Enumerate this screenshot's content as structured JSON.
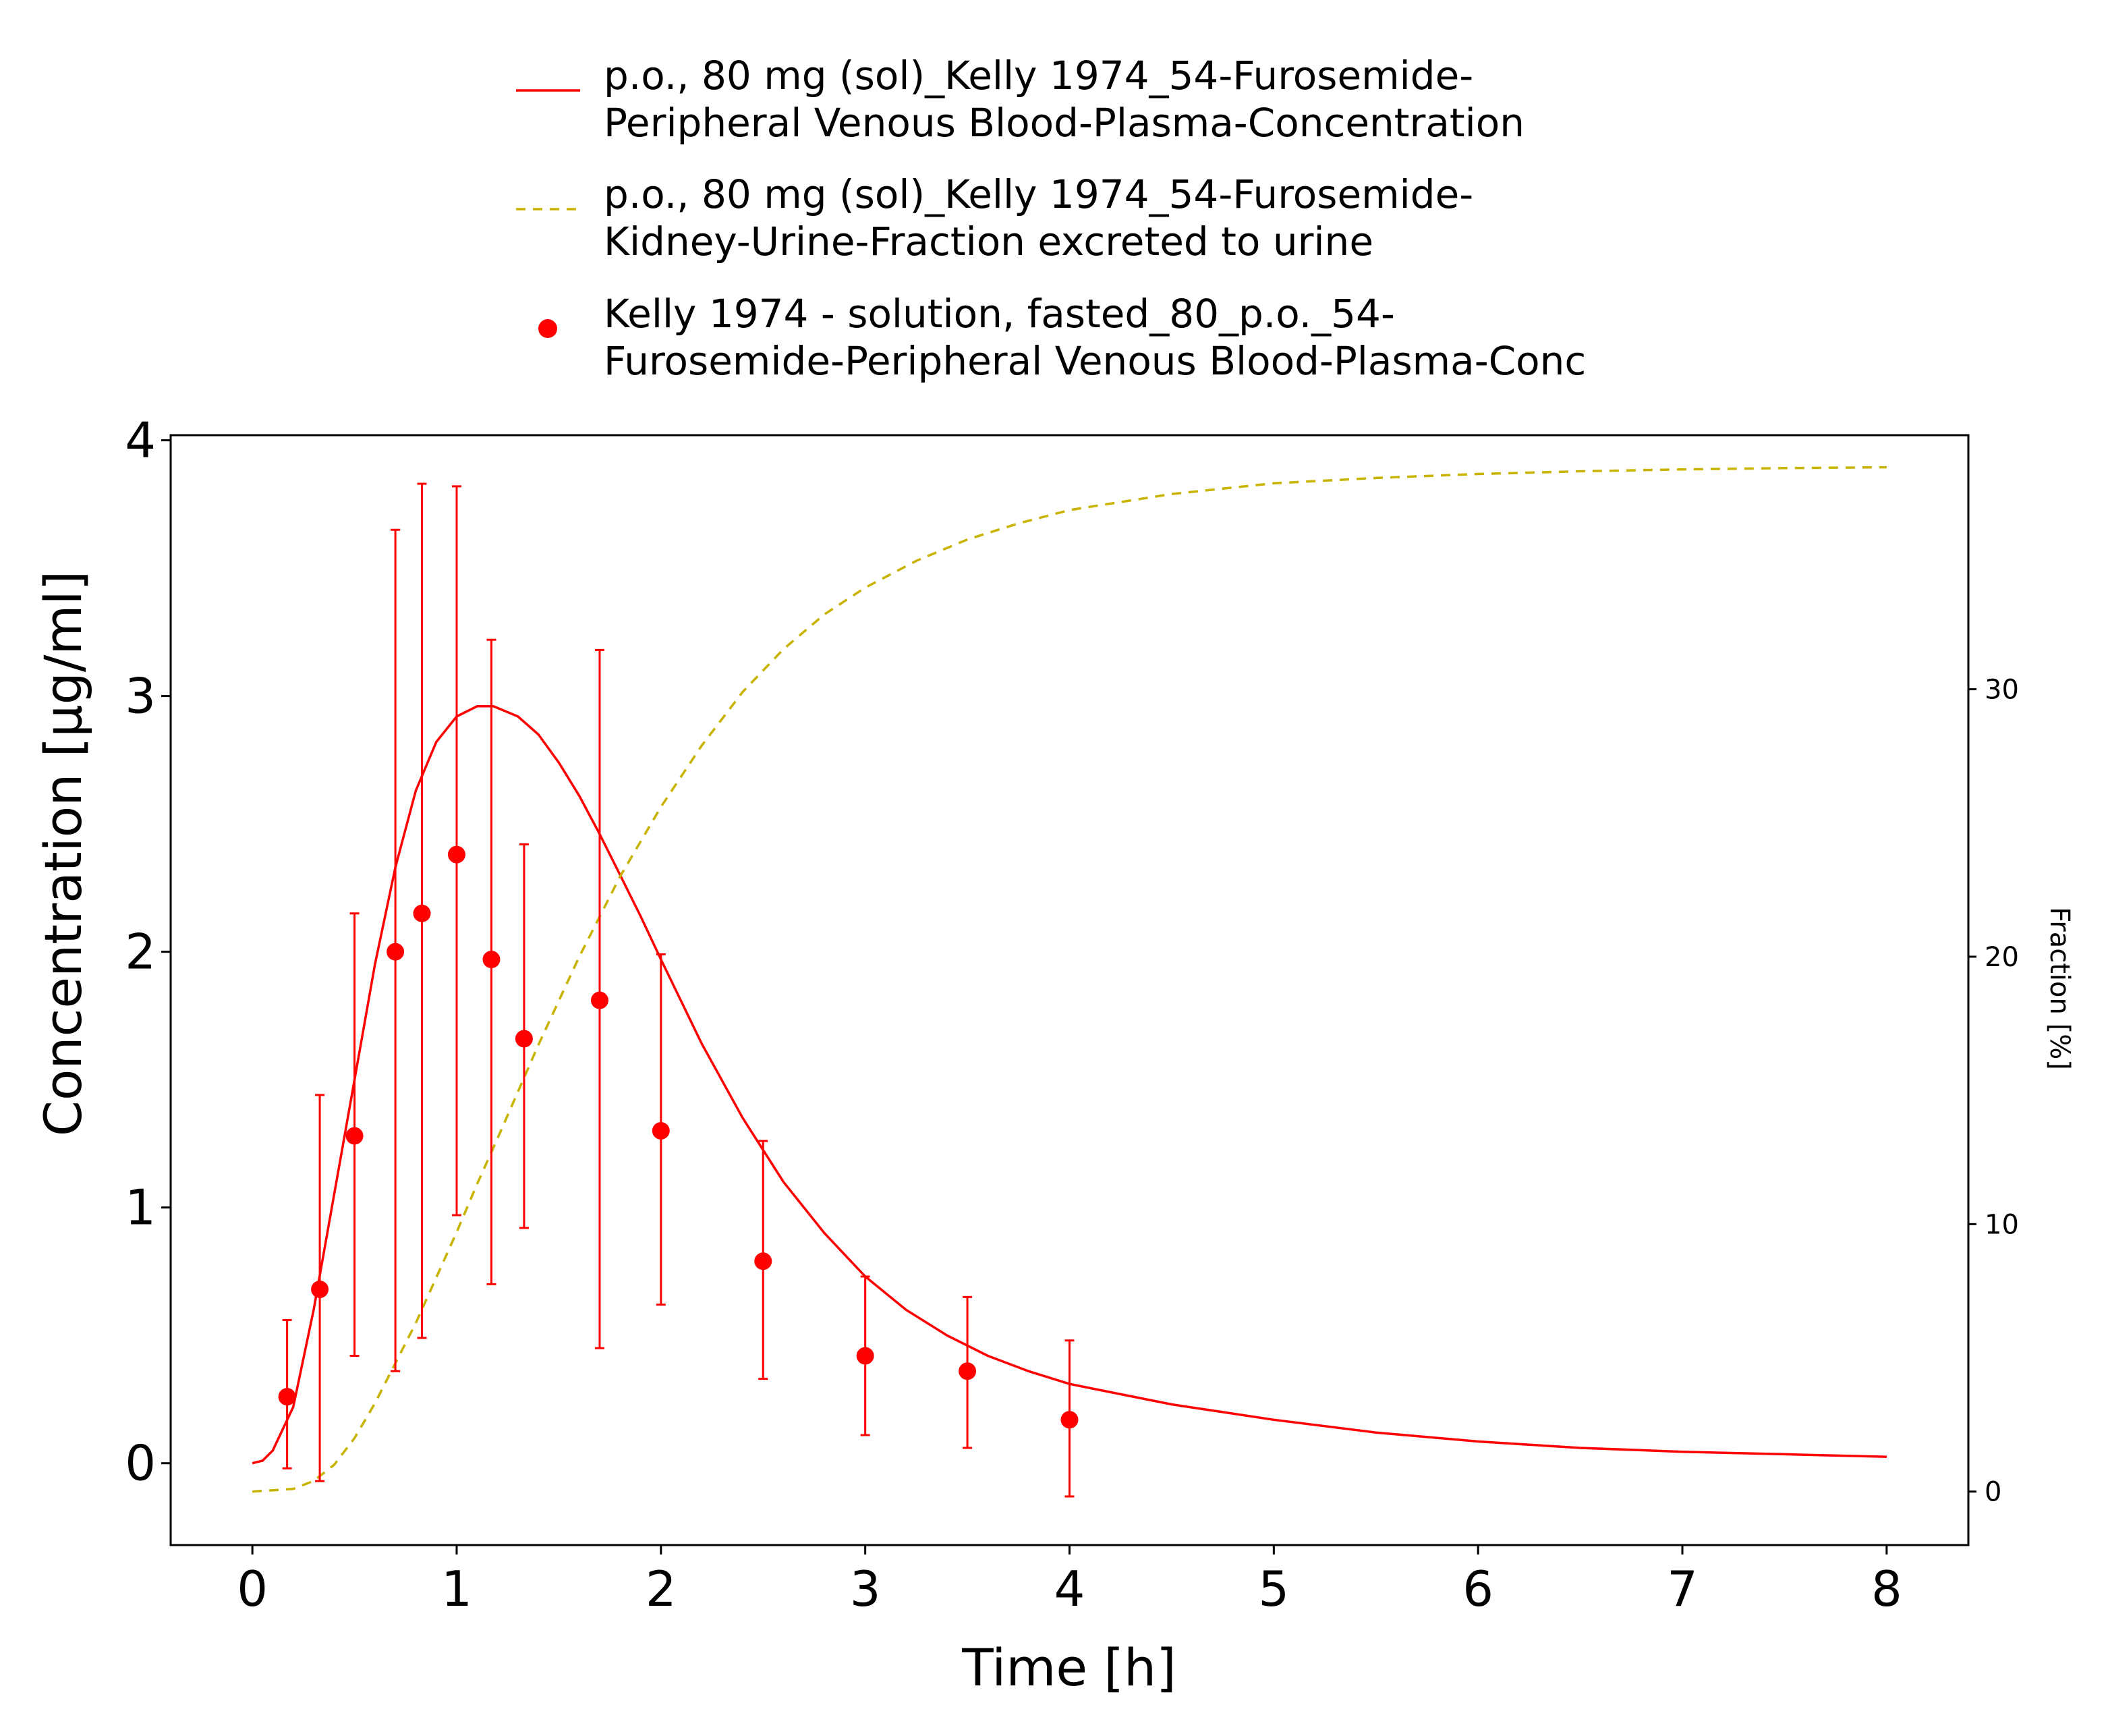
{
  "colors": {
    "plasma": "#ff0000",
    "urine": "#c8b400",
    "axis": "#000000"
  },
  "legend": [
    {
      "lines": [
        "p.o., 80 mg (sol)_Kelly 1974_54-Furosemide-",
        "Peripheral Venous Blood-Plasma-Concentration"
      ],
      "style": "solid-line"
    },
    {
      "lines": [
        "p.o., 80 mg (sol)_Kelly 1974_54-Furosemide-",
        "Kidney-Urine-Fraction excreted to urine"
      ],
      "style": "dashed-line"
    },
    {
      "lines": [
        "Kelly 1974 - solution, fasted_80_p.o._54-",
        "Furosemide-Peripheral Venous Blood-Plasma-Conc"
      ],
      "style": "marker"
    }
  ],
  "chart_data": {
    "type": "line",
    "xlabel": "Time [h]",
    "ylabel": "Concentration [µg/ml]",
    "y2label": "Fraction [%]",
    "xlim": [
      -0.4,
      8.4
    ],
    "ylim": [
      -0.32,
      4.02
    ],
    "y2lim": [
      -2,
      39.5
    ],
    "xticks": [
      0,
      1,
      2,
      3,
      4,
      5,
      6,
      7,
      8
    ],
    "yticks": [
      0,
      1,
      2,
      3,
      4
    ],
    "y2ticks": [
      0,
      10,
      20,
      30
    ],
    "grid": false,
    "legend_position": "top",
    "series": [
      {
        "name": "p.o., 80 mg (sol)_Kelly 1974_54-Furosemide-Peripheral Venous Blood-Plasma-Concentration",
        "axis": "left",
        "style": "solid",
        "x": [
          0,
          0.05,
          0.1,
          0.2,
          0.3,
          0.4,
          0.5,
          0.6,
          0.7,
          0.8,
          0.9,
          1.0,
          1.1,
          1.18,
          1.3,
          1.4,
          1.5,
          1.6,
          1.7,
          1.8,
          1.9,
          2.0,
          2.2,
          2.4,
          2.6,
          2.8,
          3.0,
          3.2,
          3.4,
          3.6,
          3.8,
          4.0,
          4.25,
          4.5,
          5.0,
          5.5,
          6.0,
          6.5,
          7.0,
          7.5,
          8.0
        ],
        "y": [
          0.0,
          0.01,
          0.05,
          0.22,
          0.6,
          1.05,
          1.5,
          1.95,
          2.33,
          2.63,
          2.82,
          2.92,
          2.96,
          2.96,
          2.92,
          2.85,
          2.74,
          2.61,
          2.46,
          2.3,
          2.14,
          1.97,
          1.64,
          1.35,
          1.1,
          0.9,
          0.73,
          0.6,
          0.5,
          0.42,
          0.36,
          0.31,
          0.27,
          0.23,
          0.17,
          0.12,
          0.085,
          0.06,
          0.045,
          0.035,
          0.025
        ]
      },
      {
        "name": "p.o., 80 mg (sol)_Kelly 1974_54-Furosemide-Kidney-Urine-Fraction excreted to urine",
        "axis": "right",
        "style": "dashed",
        "x": [
          0,
          0.2,
          0.3,
          0.4,
          0.5,
          0.6,
          0.7,
          0.8,
          0.9,
          1.0,
          1.1,
          1.2,
          1.4,
          1.6,
          1.8,
          2.0,
          2.2,
          2.4,
          2.6,
          2.8,
          3.0,
          3.25,
          3.5,
          3.75,
          4.0,
          4.25,
          4.5,
          5.0,
          5.5,
          6.0,
          6.5,
          7.0,
          7.5,
          8.0
        ],
        "y": [
          0.0,
          0.1,
          0.4,
          1.0,
          2.0,
          3.3,
          4.8,
          6.3,
          8.0,
          9.7,
          11.5,
          13.2,
          16.7,
          20.0,
          23.0,
          25.6,
          27.9,
          29.9,
          31.5,
          32.8,
          33.8,
          34.8,
          35.6,
          36.2,
          36.7,
          37.0,
          37.3,
          37.7,
          37.9,
          38.05,
          38.15,
          38.22,
          38.27,
          38.3
        ]
      },
      {
        "name": "Kelly 1974 - solution, fasted_80_p.o._54-Furosemide-Peripheral Venous Blood-Plasma-Conc",
        "axis": "left",
        "style": "points",
        "x": [
          0.17,
          0.33,
          0.5,
          0.7,
          0.83,
          1.0,
          1.17,
          1.33,
          1.7,
          2.0,
          2.5,
          3.0,
          3.5,
          4.0
        ],
        "y": [
          0.26,
          0.68,
          1.28,
          2.0,
          2.15,
          2.38,
          1.97,
          1.66,
          1.81,
          1.3,
          0.79,
          0.42,
          0.36,
          0.17
        ],
        "err_low": [
          -0.02,
          -0.07,
          0.42,
          0.36,
          0.49,
          0.97,
          0.7,
          0.92,
          0.45,
          0.62,
          0.33,
          0.11,
          0.06,
          -0.13
        ],
        "err_high": [
          0.56,
          1.44,
          2.15,
          3.65,
          3.83,
          3.82,
          3.22,
          2.42,
          3.18,
          1.99,
          1.26,
          0.73,
          0.65,
          0.48
        ]
      }
    ]
  }
}
